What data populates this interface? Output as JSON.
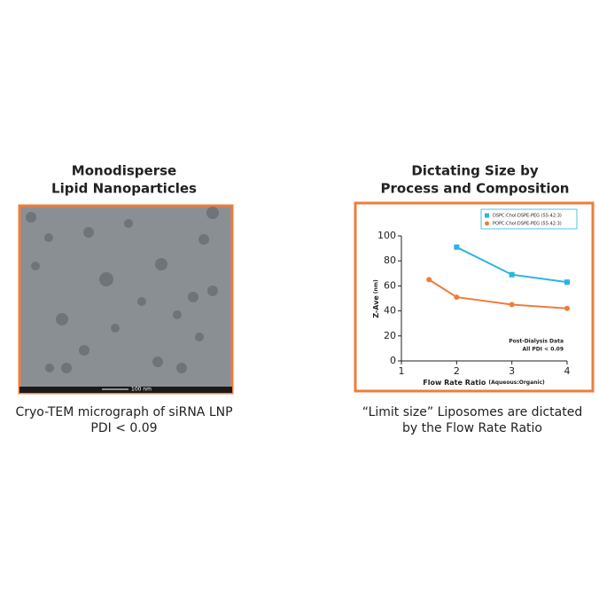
{
  "left_panel": {
    "title": [
      "Monodisperse",
      "Lipid Nanoparticles"
    ],
    "scale_bar": "100 nm",
    "caption": [
      "Cryo-TEM micrograph of siRNA LNP",
      "PDI < 0.09"
    ]
  },
  "chart_data": {
    "type": "line",
    "title": [
      "Dictating Size by",
      "Process and Composition"
    ],
    "x_label": "Flow Rate Ratio",
    "x_label_note": "(Aqueous:Organic)",
    "y_label": "Z-Ave",
    "y_label_note": "(nm)",
    "annotation": [
      "Post-Dialysis Data",
      "All PDI < 0.09"
    ],
    "series": [
      {
        "name": "DSPC:Chol:DSPE-PEG (55:42:3)",
        "color": "#29b5e2",
        "marker": "square",
        "x": [
          2,
          3,
          4
        ],
        "values": [
          91,
          69,
          63
        ]
      },
      {
        "name": "POPC:Chol:DSPE-PEG (55:42:3)",
        "color": "#ee7d3c",
        "marker": "circle",
        "x": [
          1.5,
          2,
          3,
          4
        ],
        "values": [
          65,
          51,
          45,
          42
        ]
      }
    ],
    "xlim": [
      1,
      4
    ],
    "xticks": [
      1,
      2,
      3,
      4
    ],
    "ylim": [
      0,
      100
    ],
    "yticks": [
      0,
      20,
      40,
      60,
      80,
      100
    ],
    "legend": "top-right",
    "caption": [
      "“Limit size” Liposomes are dictated",
      "by the Flow Rate Ratio"
    ]
  }
}
